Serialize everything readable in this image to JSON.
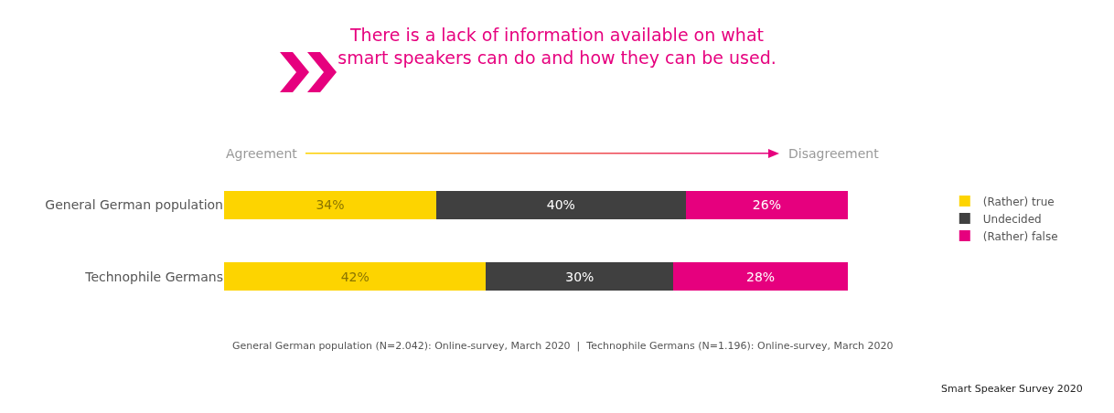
{
  "chart_data": {
    "type": "bar",
    "orientation": "horizontal",
    "stacked": true,
    "title": "There is a lack of information available on what smart speakers can do and how they can be used.",
    "categories": [
      "General German population",
      "Technophile Germans"
    ],
    "series": [
      {
        "name": "(Rather) true",
        "color": "#fdd400",
        "values": [
          34,
          42
        ],
        "value_labels": [
          "34%",
          "42%"
        ]
      },
      {
        "name": "Undecided",
        "color": "#404040",
        "values": [
          40,
          30
        ],
        "value_labels": [
          "40%",
          "30%"
        ]
      },
      {
        "name": "(Rather) false",
        "color": "#e6007e",
        "values": [
          26,
          28
        ],
        "value_labels": [
          "26%",
          "28%"
        ]
      }
    ],
    "legend": "right",
    "grid": false,
    "annotations": [
      "Agreement",
      "Disagreement",
      "General German population (N=2.042): Online-survey, March 2020  |  Technophile Germans (N=1.196): Online-survey, March 2020",
      "Smart Speaker Survey 2020"
    ]
  }
}
